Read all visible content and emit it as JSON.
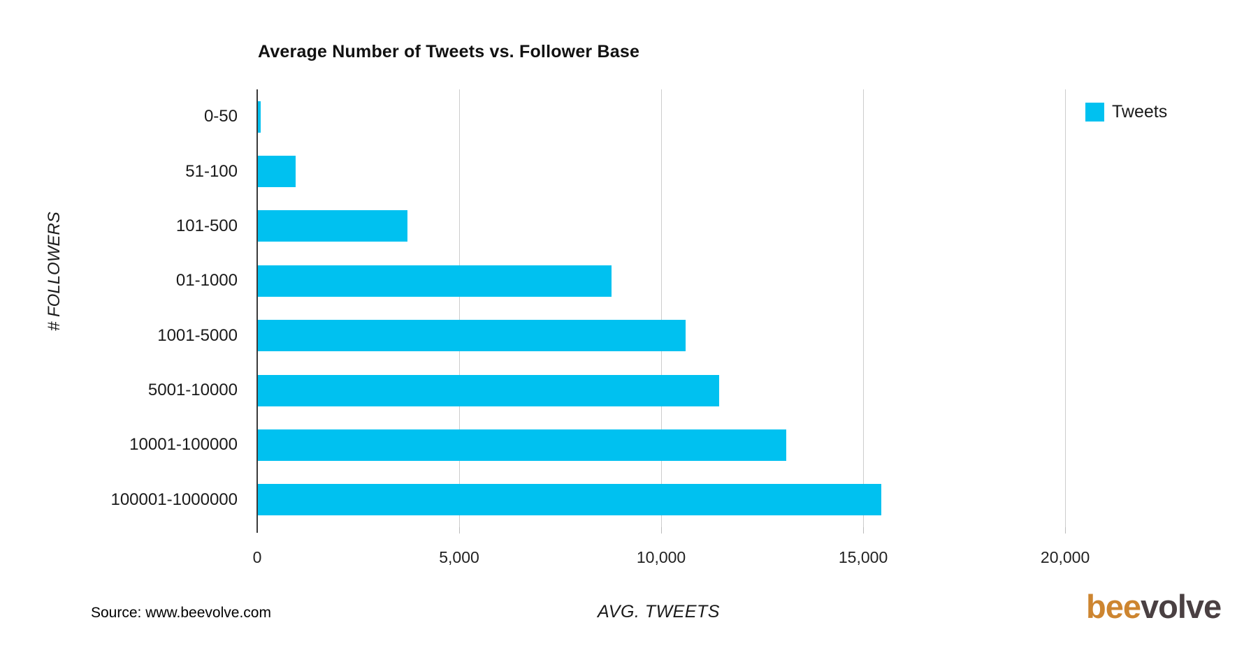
{
  "title": "Average Number of Tweets vs. Follower Base",
  "legend": {
    "label": "Tweets",
    "color": "#00c1f0"
  },
  "axes": {
    "y_title": "# FOLLOWERS",
    "x_title": "AVG. TWEETS"
  },
  "footer": {
    "source": "Source: www.beevolve.com"
  },
  "logo": {
    "prefix": "bee",
    "suffix": "volve",
    "prefix_color": "#cd8530",
    "suffix_color": "#4a4042"
  },
  "colors": {
    "bar": "#00c1f0",
    "axis_line": "#3a3a3a",
    "gridline": "#cccccc"
  },
  "chart_data": {
    "type": "bar",
    "orientation": "horizontal",
    "title": "Average Number of Tweets vs. Follower Base",
    "xlabel": "AVG. TWEETS",
    "ylabel": "# FOLLOWERS",
    "series_name": "Tweets",
    "categories": [
      "0-50",
      "51-100",
      "101-500",
      "01-1000",
      "1001-5000",
      "5001-10000",
      "10001-100000",
      "100001-1000000"
    ],
    "values": [
      80,
      950,
      3725,
      8770,
      10600,
      11440,
      13100,
      15450
    ],
    "xticks": [
      0,
      5000,
      10000,
      15000,
      20000
    ],
    "xtick_labels": [
      "0",
      "5,000",
      "10,000",
      "15,000",
      "20,000"
    ],
    "xlim": [
      0,
      22870
    ],
    "bar_color": "#00c1f0",
    "grid": true,
    "legend_position": "top-right"
  }
}
